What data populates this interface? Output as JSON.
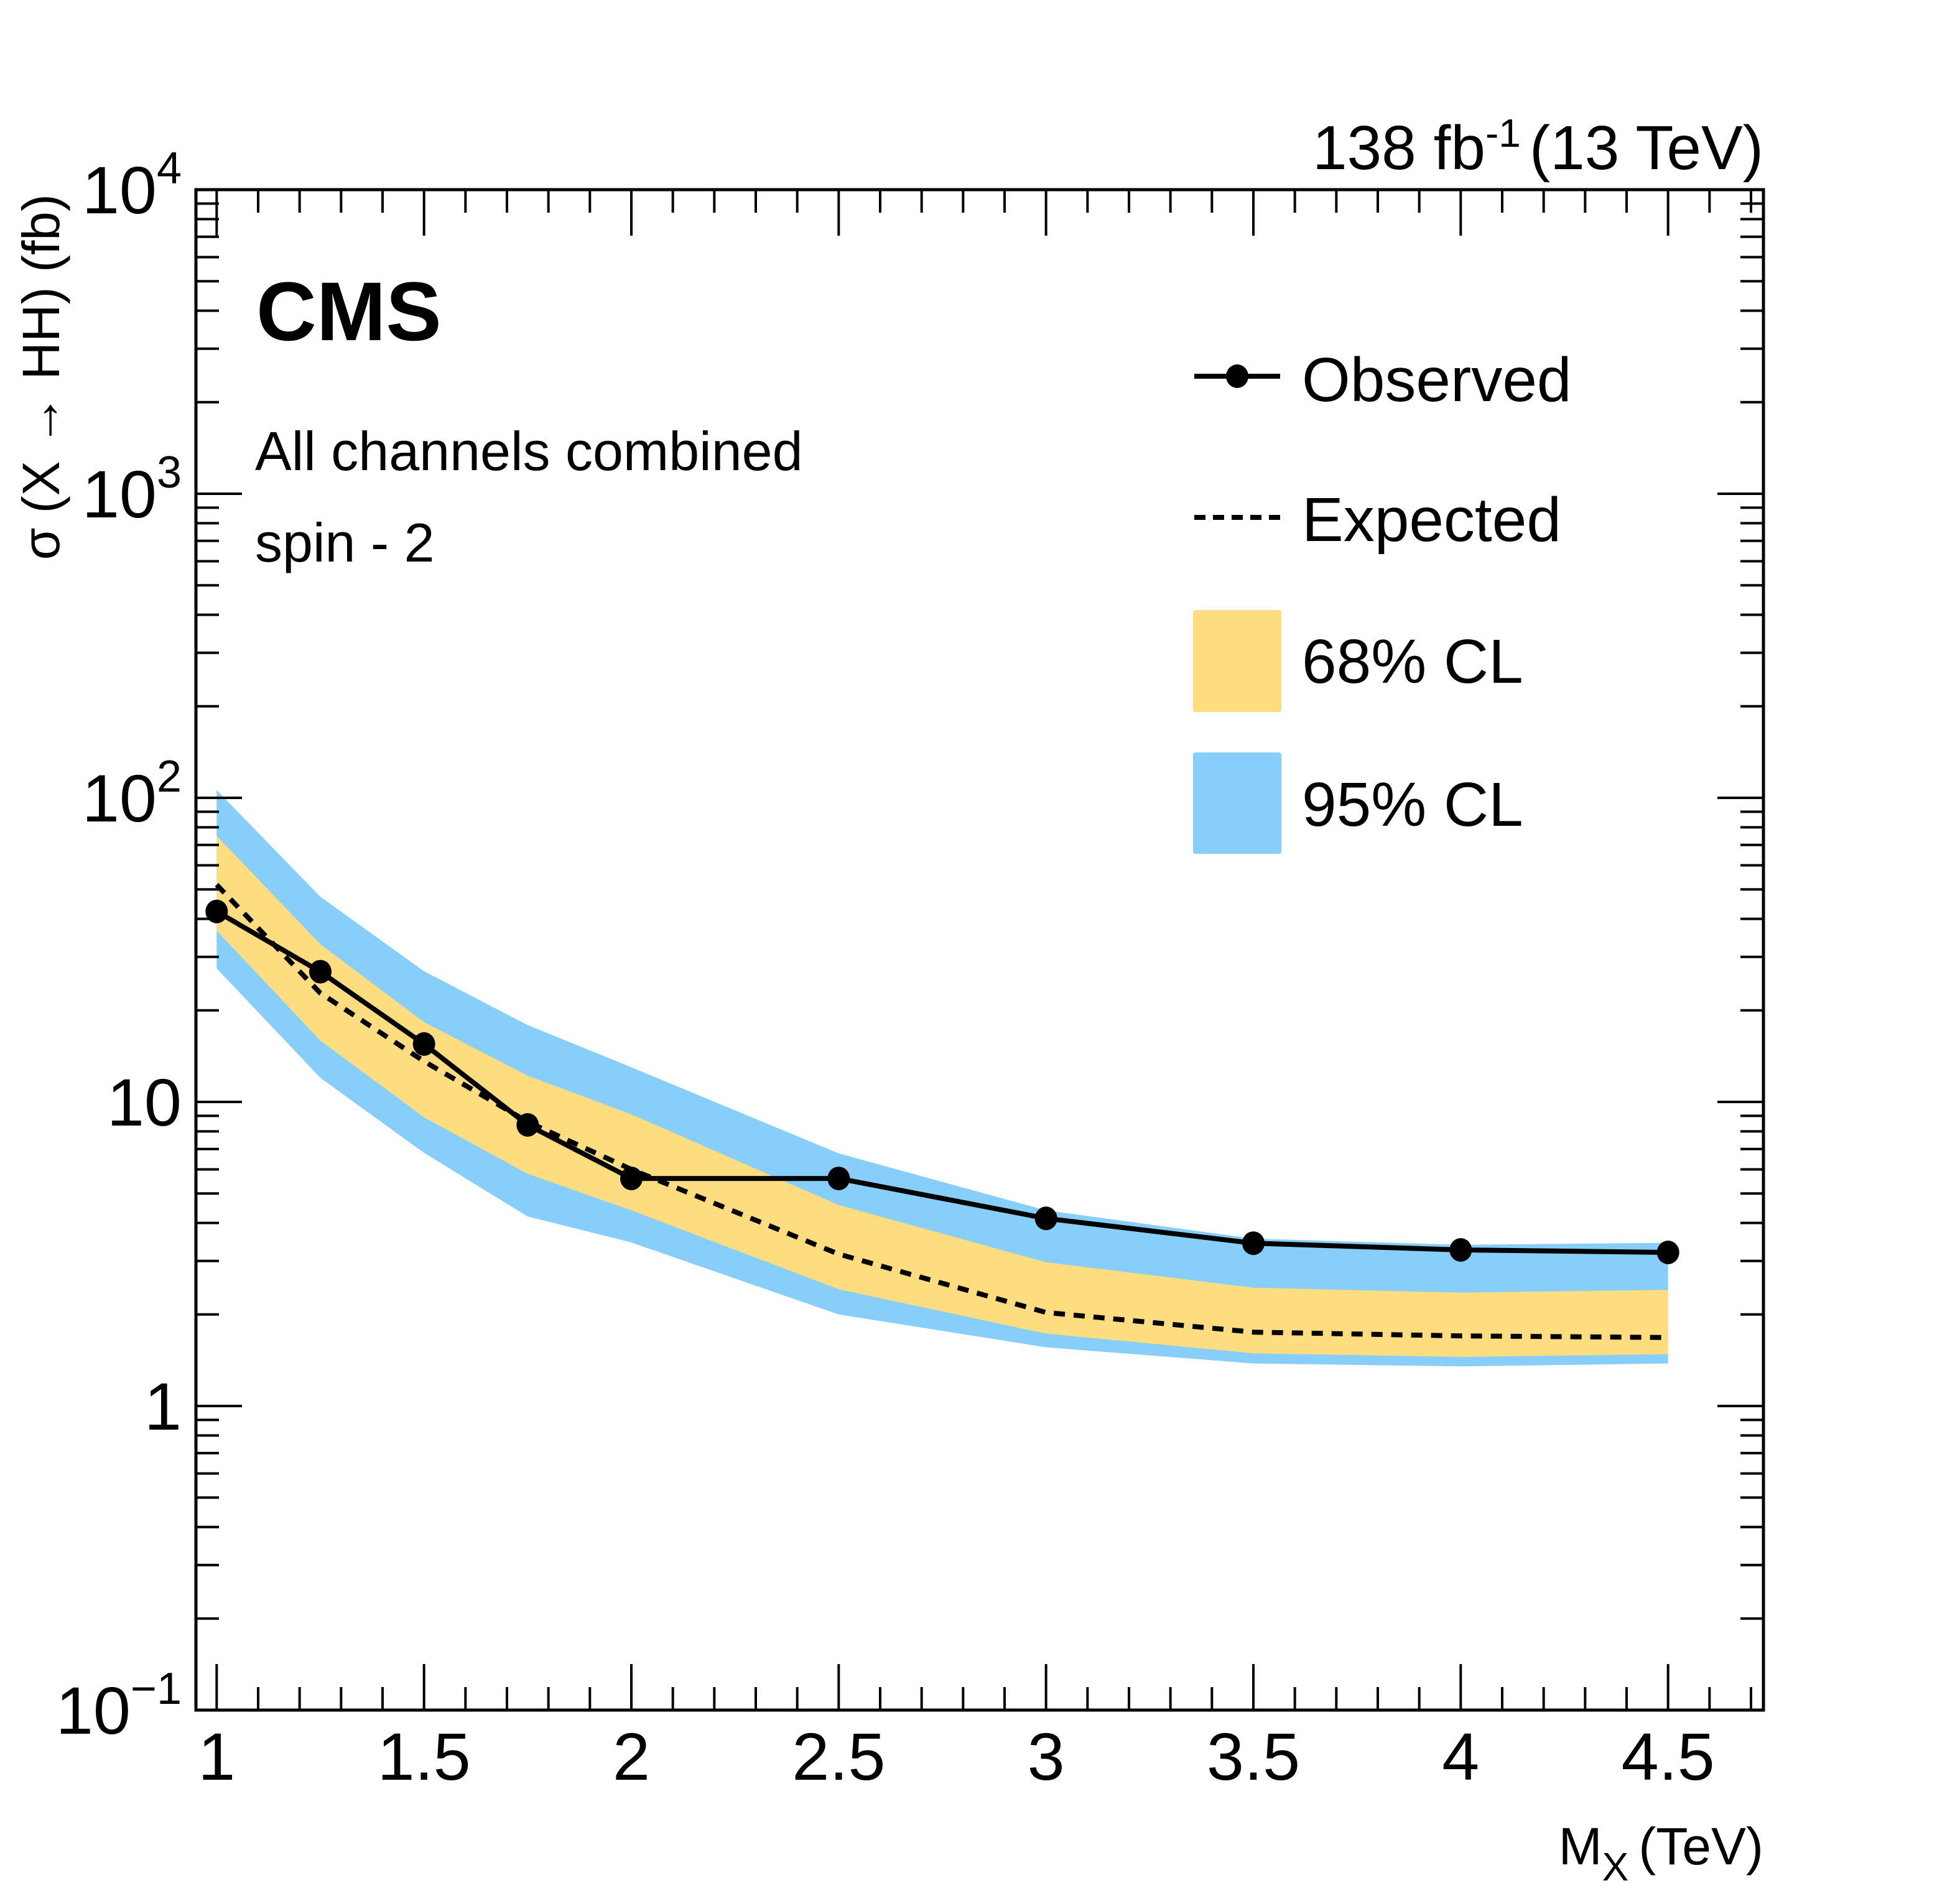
{
  "chart_data": {
    "type": "line",
    "title": "",
    "experiment_label": "CMS",
    "lumi_label": {
      "value": "138 fb",
      "superscript": "-1",
      "suffix": "(13 TeV)"
    },
    "annotations": [
      "All channels combined",
      "spin - 2"
    ],
    "xlabel": {
      "main": "M",
      "subscript": "X",
      "suffix": "(TeV)"
    },
    "ylabel": "σ (X → HH) (fb)",
    "xscale": "linear",
    "yscale": "log",
    "xlim": [
      0.95,
      4.73
    ],
    "ylim": [
      0.1,
      10000
    ],
    "grid": false,
    "legend_position": "top-right",
    "x_ticks": [
      {
        "value": 1,
        "label": "1"
      },
      {
        "value": 1.5,
        "label": "1.5"
      },
      {
        "value": 2,
        "label": "2"
      },
      {
        "value": 2.5,
        "label": "2.5"
      },
      {
        "value": 3,
        "label": "3"
      },
      {
        "value": 3.5,
        "label": "3.5"
      },
      {
        "value": 4,
        "label": "4"
      },
      {
        "value": 4.5,
        "label": "4.5"
      }
    ],
    "y_ticks": [
      {
        "value": 0.1,
        "base": "10",
        "exp": "−1"
      },
      {
        "value": 1,
        "base": "1",
        "exp": ""
      },
      {
        "value": 10,
        "base": "10",
        "exp": ""
      },
      {
        "value": 100,
        "base": "10",
        "exp": "2"
      },
      {
        "value": 1000,
        "base": "10",
        "exp": "3"
      },
      {
        "value": 10000,
        "base": "10",
        "exp": "4"
      }
    ],
    "x": [
      1.0,
      1.25,
      1.5,
      1.75,
      2.0,
      2.5,
      3.0,
      3.5,
      4.0,
      4.5
    ],
    "series": [
      {
        "name": "Observed",
        "style": "solid-line-with-markers",
        "color": "#000000",
        "values": [
          42.3,
          26.8,
          15.5,
          8.4,
          5.6,
          5.6,
          4.14,
          3.43,
          3.26,
          3.2
        ]
      },
      {
        "name": "Expected",
        "style": "dashed-line",
        "color": "#000000",
        "values": [
          51.8,
          22.8,
          13.6,
          8.6,
          6.0,
          3.16,
          2.03,
          1.75,
          1.7,
          1.68
        ]
      }
    ],
    "bands": [
      {
        "name": "95% CL",
        "color": "#87CEFA",
        "upper": [
          106,
          47.3,
          26.9,
          17.9,
          13.0,
          6.77,
          4.4,
          3.55,
          3.39,
          3.44
        ],
        "lower": [
          27.5,
          12.0,
          6.8,
          4.2,
          3.45,
          2.0,
          1.56,
          1.38,
          1.35,
          1.38
        ]
      },
      {
        "name": "68% CL",
        "color": "#FEDD80",
        "upper": [
          75,
          33.0,
          18.3,
          12.2,
          9.1,
          4.58,
          2.97,
          2.45,
          2.36,
          2.41
        ],
        "lower": [
          36.6,
          15.9,
          8.9,
          5.8,
          4.4,
          2.42,
          1.73,
          1.49,
          1.45,
          1.48
        ]
      }
    ],
    "legend": [
      {
        "label": "Observed",
        "kind": "line-marker"
      },
      {
        "label": "Expected",
        "kind": "dashed-line"
      },
      {
        "label": "68% CL",
        "kind": "box",
        "color": "#FEDD80"
      },
      {
        "label": "95% CL",
        "kind": "box",
        "color": "#87CEFA"
      }
    ]
  }
}
